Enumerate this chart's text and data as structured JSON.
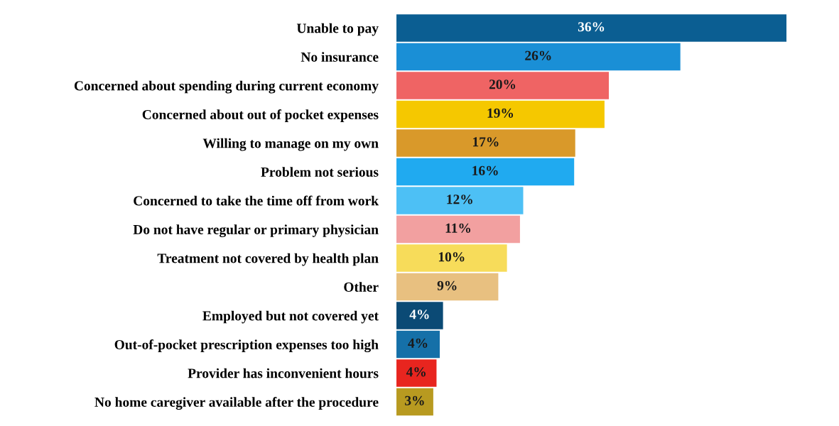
{
  "chart_data": {
    "type": "bar",
    "orientation": "horizontal",
    "value_labels": [
      "36%",
      "26%",
      "20%",
      "19%",
      "17%",
      "16%",
      "12%",
      "11%",
      "10%",
      "9%",
      "4%",
      "4%",
      "4%",
      "3%"
    ],
    "categories": [
      "Unable to pay",
      "No insurance",
      "Concerned about spending during current economy",
      "Concerned about out of pocket expenses",
      "Willing to manage on my own",
      "Problem not serious",
      "Concerned to take the time off from work",
      "Do not have regular or primary physician",
      "Treatment not covered by health plan",
      "Other",
      "Employed but not covered yet",
      "Out-of-pocket prescription expenses too high",
      "Provider has inconvenient hours",
      "No home caregiver available after the procedure"
    ],
    "values": [
      36,
      26.2,
      19.6,
      19.2,
      16.5,
      16.4,
      11.7,
      11.4,
      10.2,
      9.4,
      4.3,
      4.0,
      3.7,
      3.4
    ],
    "colors": [
      "#0b5e92",
      "#1a8fd6",
      "#ef6464",
      "#f5c800",
      "#d9992a",
      "#20aaf0",
      "#4dc0f5",
      "#f2a0a0",
      "#f7dc5a",
      "#e8c080",
      "#0b4a75",
      "#1570a8",
      "#e8251f",
      "#b89a20"
    ]
  }
}
